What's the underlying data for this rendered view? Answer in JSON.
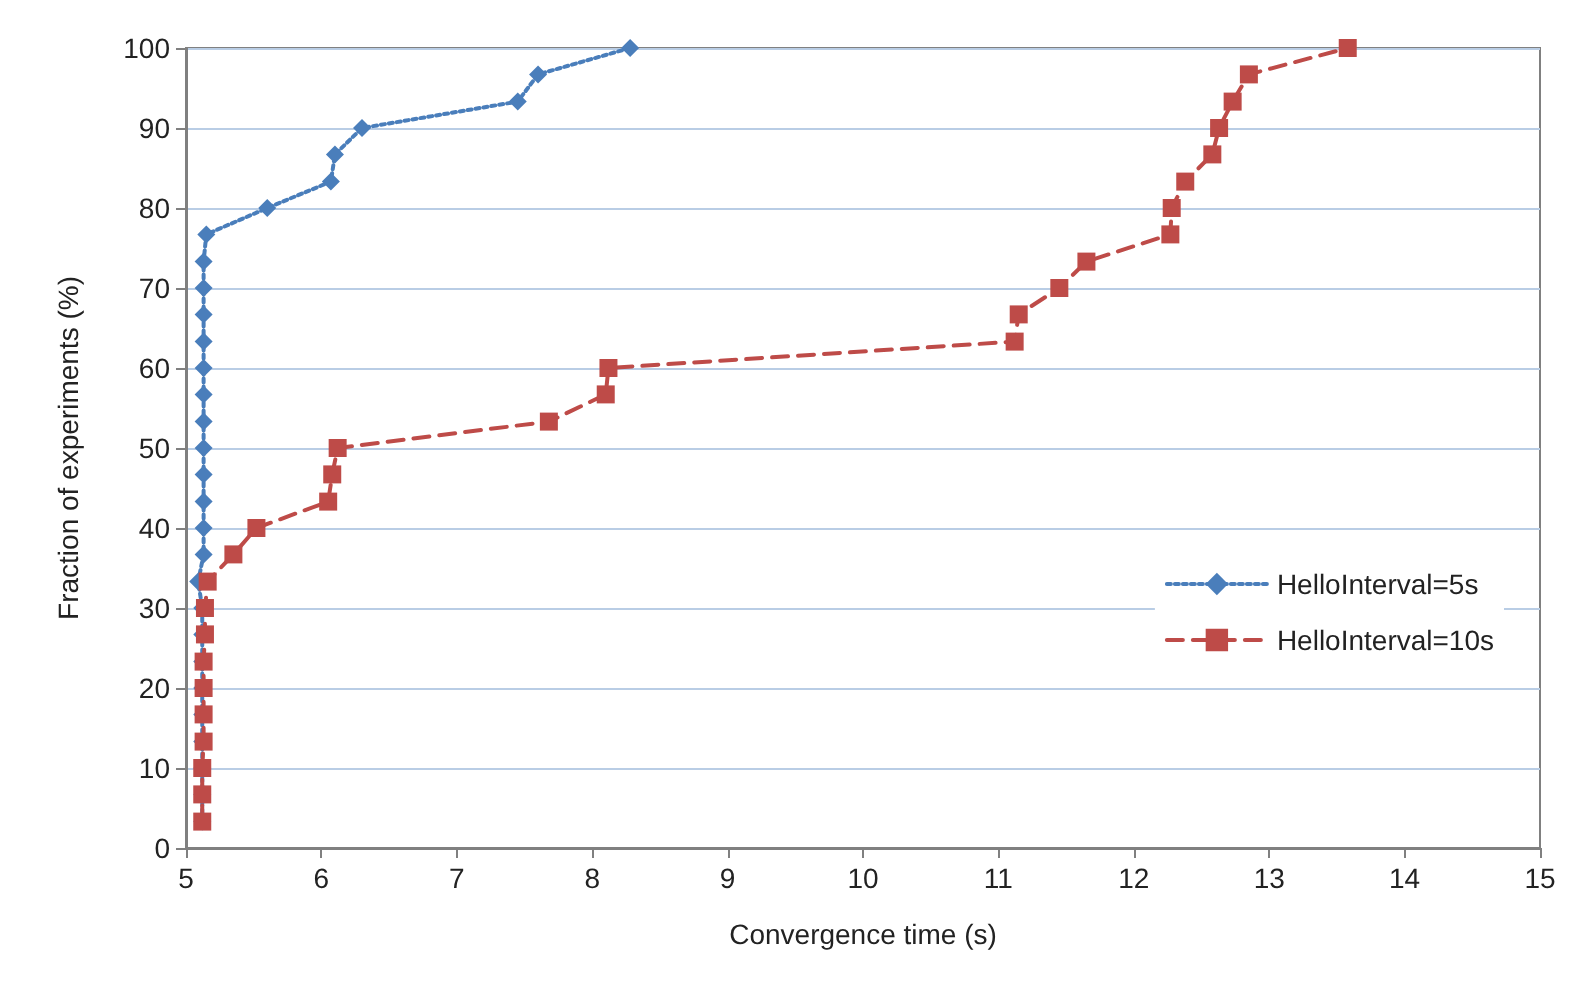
{
  "chart_data": {
    "type": "line",
    "xlabel": "Convergence time (s)",
    "ylabel": "Fraction of experiments (%)",
    "xlim": [
      5,
      15
    ],
    "xticks": [
      5,
      6,
      7,
      8,
      9,
      10,
      11,
      12,
      13,
      14,
      15
    ],
    "ylim": [
      0,
      100
    ],
    "yticks": [
      0,
      10,
      20,
      30,
      40,
      50,
      60,
      70,
      80,
      90,
      100
    ],
    "grid": "y",
    "legend": "right",
    "series": [
      {
        "name": "HelloInterval=5s",
        "color": "#4a7ebb",
        "marker": "diamond",
        "line_style": "dotted",
        "x": [
          5.12,
          5.12,
          5.12,
          5.12,
          5.12,
          5.12,
          5.12,
          5.12,
          5.12,
          5.09,
          5.13,
          5.13,
          5.13,
          5.13,
          5.13,
          5.13,
          5.13,
          5.13,
          5.13,
          5.13,
          5.13,
          5.13,
          5.15,
          5.6,
          6.07,
          6.1,
          6.3,
          7.45,
          7.6,
          8.28
        ],
        "values": [
          3.3,
          6.7,
          10,
          13.3,
          16.7,
          20,
          23.3,
          26.7,
          30,
          33.3,
          36.7,
          40,
          43.3,
          46.7,
          50,
          53.3,
          56.7,
          60,
          63.3,
          66.7,
          70,
          73.3,
          76.7,
          80,
          83.3,
          86.7,
          90,
          93.3,
          96.7,
          100
        ]
      },
      {
        "name": "HelloInterval=10s",
        "color": "#be4b48",
        "marker": "square",
        "line_style": "dashed",
        "x": [
          5.12,
          5.12,
          5.12,
          5.13,
          5.13,
          5.13,
          5.13,
          5.14,
          5.14,
          5.16,
          5.35,
          5.52,
          6.05,
          6.08,
          6.12,
          7.68,
          8.1,
          8.12,
          11.12,
          11.15,
          11.45,
          11.65,
          12.27,
          12.28,
          12.38,
          12.58,
          12.63,
          12.73,
          12.85,
          13.58
        ],
        "values": [
          3.3,
          6.7,
          10,
          13.3,
          16.7,
          20,
          23.3,
          26.7,
          30,
          33.3,
          36.7,
          40,
          43.3,
          46.7,
          50,
          53.3,
          56.7,
          60,
          63.3,
          66.7,
          70,
          73.3,
          76.7,
          80,
          83.3,
          86.7,
          90,
          93.3,
          96.7,
          100
        ]
      }
    ]
  }
}
